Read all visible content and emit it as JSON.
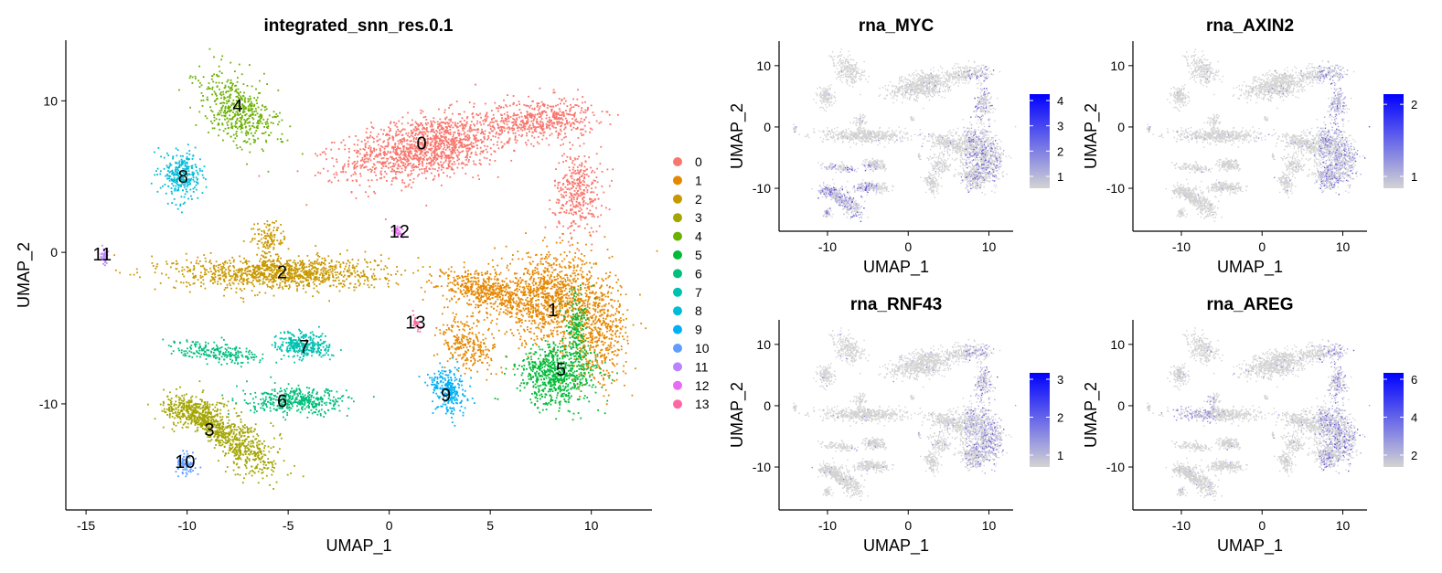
{
  "chart_data": [
    {
      "type": "scatter",
      "title": "integrated_snn_res.0.1",
      "xlabel": "UMAP_1",
      "ylabel": "UMAP_2",
      "xlim": [
        -16,
        13
      ],
      "ylim": [
        -17,
        14
      ],
      "xticks": [
        -15,
        -10,
        -5,
        0,
        5,
        10
      ],
      "yticks": [
        -10,
        0,
        10
      ],
      "legend": "right",
      "clusters": [
        {
          "label": "0",
          "color": "#F8766D",
          "x": 1.6,
          "y": 7.2
        },
        {
          "label": "1",
          "color": "#E58700",
          "x": 8.1,
          "y": -3.8
        },
        {
          "label": "2",
          "color": "#C99800",
          "x": -5.3,
          "y": -1.3
        },
        {
          "label": "3",
          "color": "#A3A500",
          "x": -8.9,
          "y": -11.7
        },
        {
          "label": "4",
          "color": "#6BB100",
          "x": -7.5,
          "y": 9.7
        },
        {
          "label": "5",
          "color": "#00BA38",
          "x": 8.5,
          "y": -7.7
        },
        {
          "label": "6",
          "color": "#00BF7D",
          "x": -5.3,
          "y": -9.8
        },
        {
          "label": "7",
          "color": "#00C0AF",
          "x": -4.2,
          "y": -6.2
        },
        {
          "label": "8",
          "color": "#00BCD8",
          "x": -10.2,
          "y": 5.0
        },
        {
          "label": "9",
          "color": "#00B0F6",
          "x": 2.8,
          "y": -9.4
        },
        {
          "label": "10",
          "color": "#619CFF",
          "x": -10.1,
          "y": -13.8
        },
        {
          "label": "11",
          "color": "#B983FF",
          "x": -14.2,
          "y": -0.1
        },
        {
          "label": "12",
          "color": "#E76BF3",
          "x": 0.5,
          "y": 1.4
        },
        {
          "label": "13",
          "color": "#FF67A4",
          "x": 1.3,
          "y": -4.6
        }
      ]
    },
    {
      "type": "scatter",
      "title": "rna_MYC",
      "xlabel": "UMAP_1",
      "ylabel": "UMAP_2",
      "xticks": [
        -10,
        0,
        10
      ],
      "yticks": [
        -10,
        0,
        10
      ],
      "colorbar_ticks": [
        "1",
        "2",
        "3",
        "4"
      ]
    },
    {
      "type": "scatter",
      "title": "rna_AXIN2",
      "xlabel": "UMAP_1",
      "ylabel": "UMAP_2",
      "xticks": [
        -10,
        0,
        10
      ],
      "yticks": [
        -10,
        0,
        10
      ],
      "colorbar_ticks": [
        "1",
        "2"
      ]
    },
    {
      "type": "scatter",
      "title": "rna_RNF43",
      "xlabel": "UMAP_1",
      "ylabel": "UMAP_2",
      "xticks": [
        -10,
        0,
        10
      ],
      "yticks": [
        -10,
        0,
        10
      ],
      "colorbar_ticks": [
        "1",
        "2",
        "3"
      ]
    },
    {
      "type": "scatter",
      "title": "rna_AREG",
      "xlabel": "UMAP_1",
      "ylabel": "UMAP_2",
      "xticks": [
        -10,
        0,
        10
      ],
      "yticks": [
        -10,
        0,
        10
      ],
      "colorbar_ticks": [
        "2",
        "4",
        "6"
      ]
    }
  ]
}
